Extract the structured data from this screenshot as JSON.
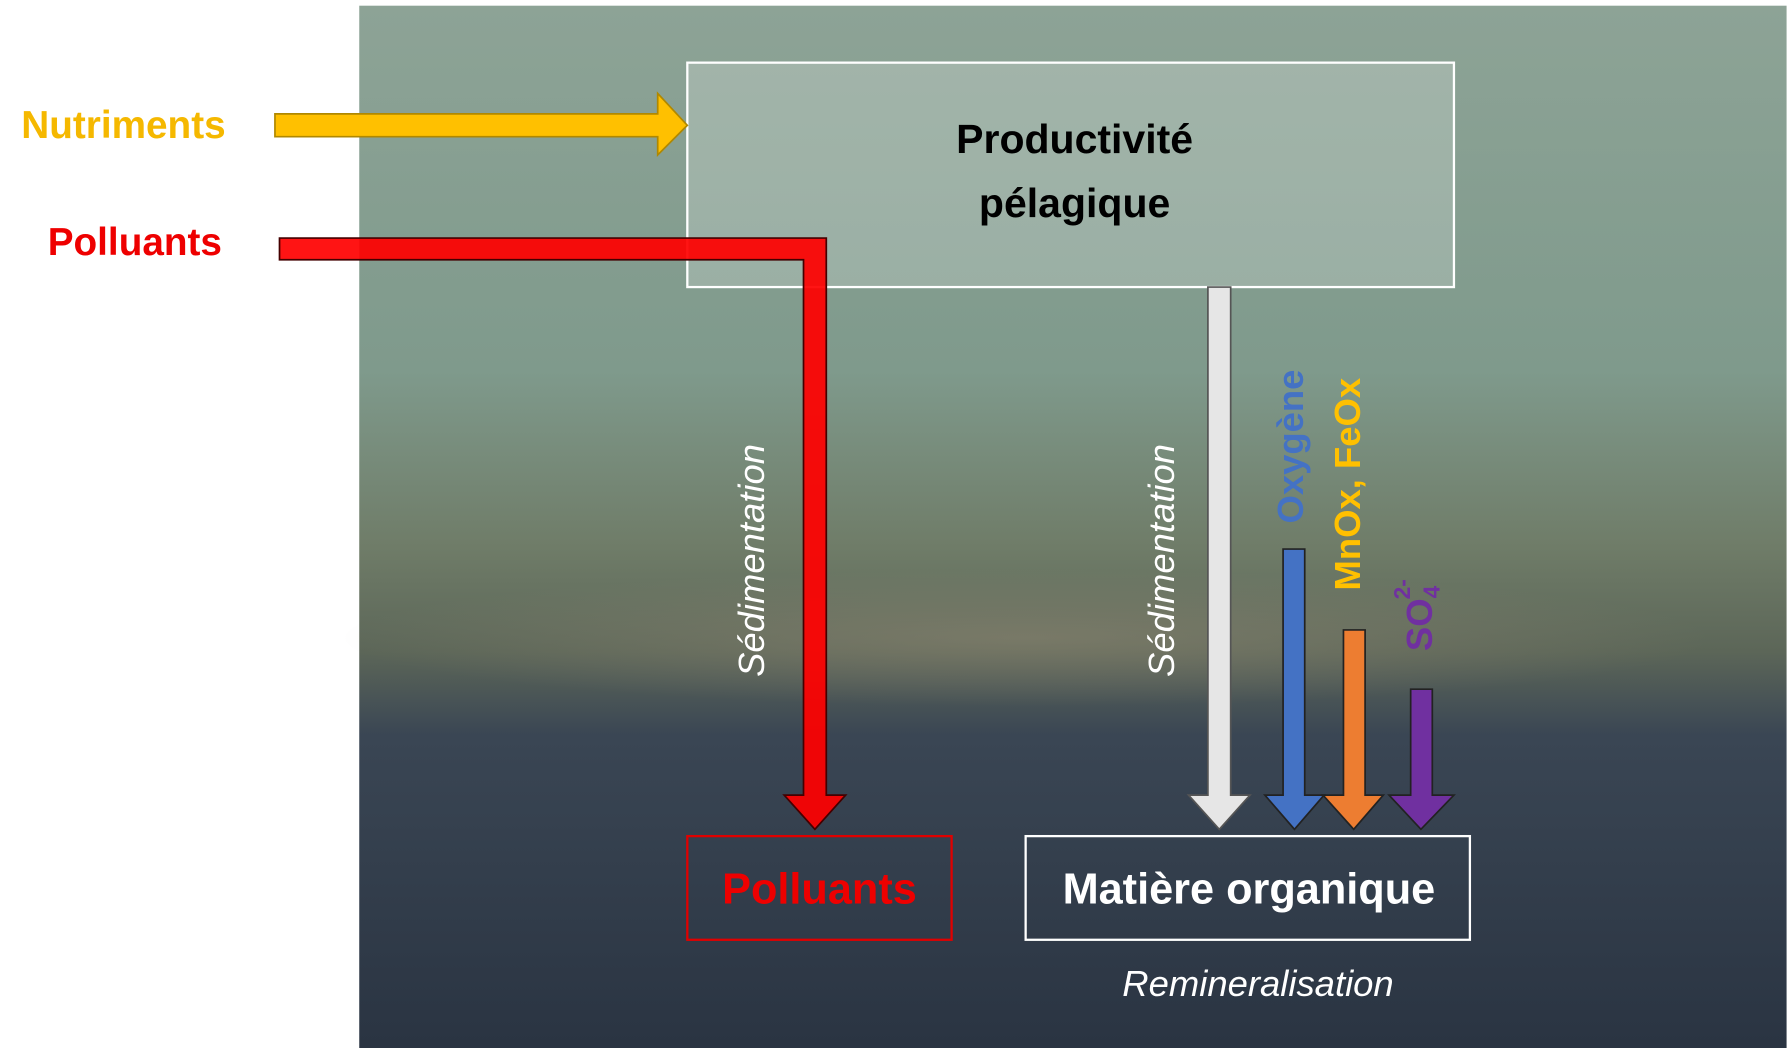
{
  "inputs": {
    "nutrients": "Nutriments",
    "pollutants": "Polluants"
  },
  "production_box": {
    "line1": "Productivité",
    "line2": "pélagique"
  },
  "sedimentation": [
    "Sédimentation",
    "Sédimentation"
  ],
  "electron_acceptors": {
    "oxygen": "Oxygène",
    "metals": "MnOx, FeOx",
    "sulfate": {
      "formula": "SO",
      "subscript": "4",
      "superscript": "2-"
    }
  },
  "outputs": {
    "pollutants": "Polluants",
    "organic_matter": "Matière organique"
  },
  "caption": "Remineralisation"
}
